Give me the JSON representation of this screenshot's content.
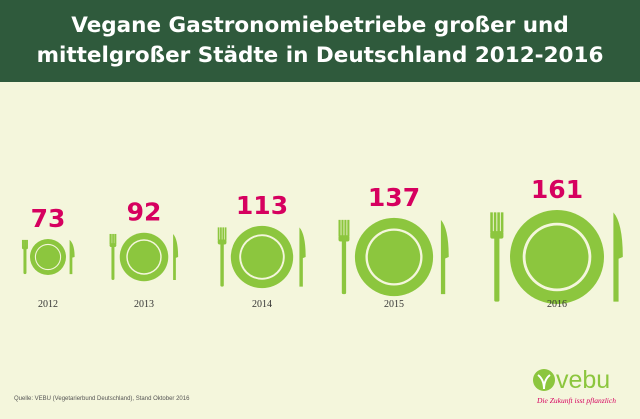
{
  "header": {
    "title_line1": "Vegane Gastronomiebetriebe großer und",
    "title_line2": "mittelgroßer Städte in Deutschland 2012-2016"
  },
  "chart_data": {
    "type": "bar",
    "title": "Vegane Gastronomiebetriebe großer und mittelgroßer Städte in Deutschland 2012-2016",
    "categories": [
      "2012",
      "2013",
      "2014",
      "2015",
      "2016"
    ],
    "values": [
      73,
      92,
      113,
      137,
      161
    ],
    "xlabel": "",
    "ylabel": "",
    "grid": false,
    "colors": {
      "value_label": "#d6005f",
      "plate": "#8cc63e",
      "cutlery": "#8cc63e",
      "background": "#f4f6dc",
      "header": "#2f5a3c"
    }
  },
  "footer": {
    "source": "Quelle: VEBU (Vegetarierbund Deutschland), Stand Oktober 2016"
  },
  "logo": {
    "name": "vebu",
    "tagline": "Die Zukunft isst pflanzlich",
    "icon": "leaf-icon"
  }
}
